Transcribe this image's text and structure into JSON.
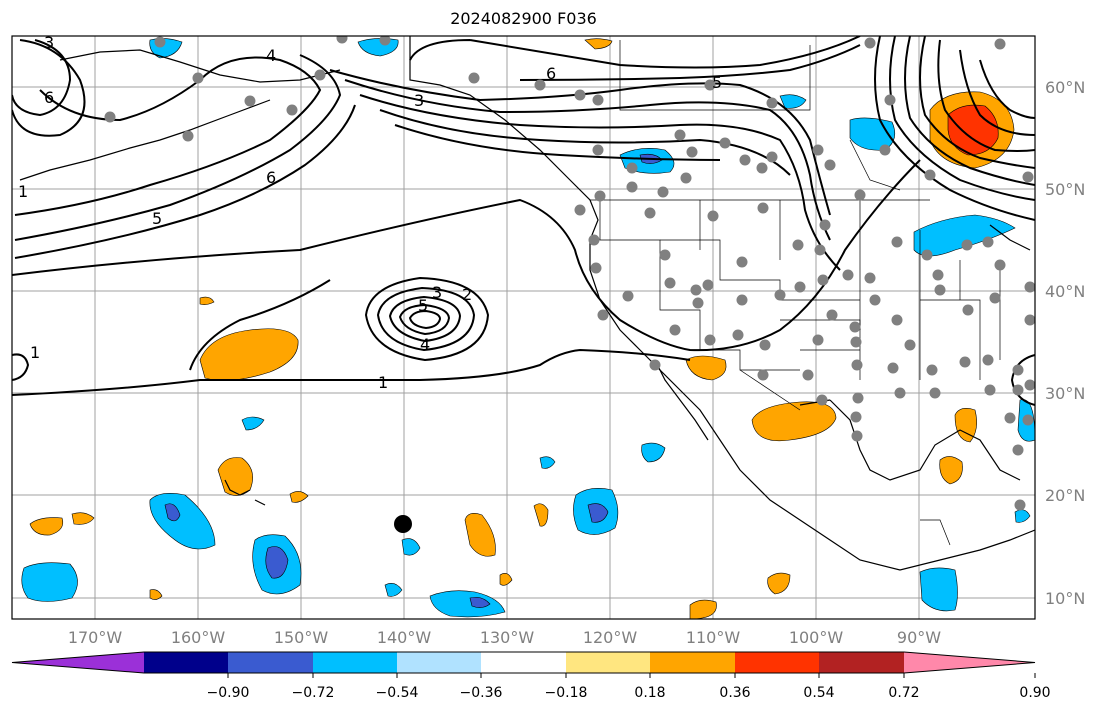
{
  "title": "2024082900 F036",
  "lon_ticks": [
    "170°W",
    "160°W",
    "150°W",
    "140°W",
    "130°W",
    "120°W",
    "110°W",
    "100°W",
    "90°W"
  ],
  "lat_ticks": [
    "60°N",
    "50°N",
    "40°N",
    "30°N",
    "20°N",
    "10°N"
  ],
  "colorbar": {
    "ticks": [
      "−0.90",
      "−0.72",
      "−0.54",
      "−0.36",
      "−0.18",
      "0.18",
      "0.36",
      "0.54",
      "0.72",
      "0.90"
    ],
    "colors": [
      "#9b30d8",
      "#00008b",
      "#3a5bd0",
      "#00bfff",
      "#b0e2ff",
      "#ffffff",
      "#ffe680",
      "#ffa500",
      "#ff3300",
      "#b22222",
      "#ff88aa"
    ]
  },
  "contour_labels": [
    "3",
    "6",
    "4",
    "6",
    "5",
    "6",
    "5",
    "1",
    "5",
    "3",
    "4",
    "2",
    "3",
    "1",
    "1"
  ],
  "colors": {
    "contour": "#000000",
    "station": "#808080",
    "grid": "#a0a0a0"
  }
}
